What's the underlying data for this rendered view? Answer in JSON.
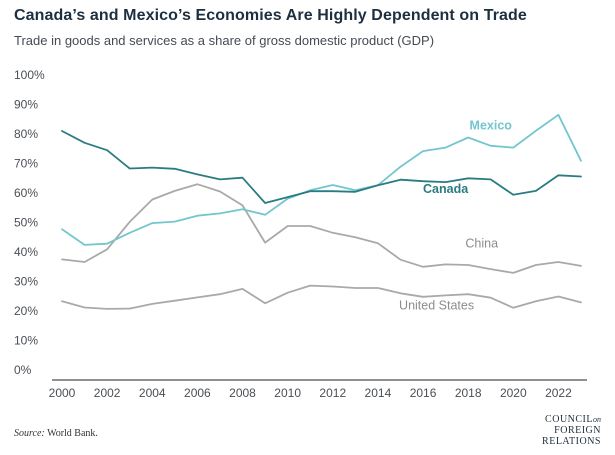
{
  "header": {
    "title": "Canada’s and Mexico’s Economies Are Highly Dependent on Trade",
    "subtitle": "Trade in goods and services as a share of gross domestic product (GDP)"
  },
  "footer": {
    "source_label": "Source:",
    "source_text": "World Bank.",
    "logo_line1": "COUNCIL",
    "logo_on": "on",
    "logo_line2": "FOREIGN",
    "logo_line3": "RELATIONS"
  },
  "colors": {
    "mexico": "#72c6cd",
    "canada": "#2a7c83",
    "china": "#a9a9a9",
    "united_states": "#a9a9a9",
    "axis": "#222222",
    "tick_text": "#4a4f55"
  },
  "chart_data": {
    "type": "line",
    "title": "Canada’s and Mexico’s Economies Are Highly Dependent on Trade",
    "subtitle": "Trade in goods and services as a share of gross domestic product (GDP)",
    "xlabel": "",
    "ylabel": "",
    "x": [
      2000,
      2001,
      2002,
      2003,
      2004,
      2005,
      2006,
      2007,
      2008,
      2009,
      2010,
      2011,
      2012,
      2013,
      2014,
      2015,
      2016,
      2017,
      2018,
      2019,
      2020,
      2021,
      2022,
      2023
    ],
    "xticks": [
      "2000",
      "2002",
      "2004",
      "2006",
      "2008",
      "2010",
      "2012",
      "2014",
      "2016",
      "2018",
      "2020",
      "2022"
    ],
    "ylim": [
      0,
      100
    ],
    "yticks": [
      "0%",
      "10%",
      "20%",
      "30%",
      "40%",
      "50%",
      "60%",
      "70%",
      "80%",
      "90%",
      "100%"
    ],
    "grid": false,
    "series": [
      {
        "name": "Mexico",
        "key": "mexico",
        "values": [
          47.7,
          42.4,
          42.8,
          46.5,
          49.8,
          50.3,
          52.3,
          53.1,
          54.5,
          52.6,
          58.1,
          60.9,
          62.7,
          60.9,
          62.6,
          68.9,
          74.2,
          75.4,
          78.8,
          76.0,
          75.4,
          81.1,
          86.5,
          70.9
        ]
      },
      {
        "name": "Canada",
        "key": "canada",
        "values": [
          81.0,
          77.0,
          74.5,
          68.3,
          68.6,
          68.2,
          66.3,
          64.6,
          65.2,
          56.6,
          58.6,
          60.6,
          60.6,
          60.4,
          62.6,
          64.5,
          64.0,
          63.7,
          65.0,
          64.6,
          59.4,
          60.7,
          66.0,
          65.6
        ]
      },
      {
        "name": "China",
        "key": "china",
        "values": [
          37.5,
          36.6,
          40.9,
          50.2,
          57.8,
          60.7,
          63.0,
          60.5,
          55.8,
          43.2,
          48.8,
          48.8,
          46.5,
          45.0,
          43.0,
          37.4,
          35.0,
          35.8,
          35.6,
          34.2,
          32.9,
          35.6,
          36.6,
          35.3
        ]
      },
      {
        "name": "United States",
        "key": "united_states",
        "values": [
          23.3,
          21.2,
          20.7,
          20.8,
          22.4,
          23.5,
          24.6,
          25.7,
          27.5,
          22.6,
          26.2,
          28.6,
          28.3,
          27.8,
          27.8,
          26.0,
          24.8,
          25.3,
          25.7,
          24.5,
          21.1,
          23.3,
          24.9,
          22.9
        ]
      }
    ],
    "annotations": [
      {
        "text": "Mexico",
        "series": "mexico"
      },
      {
        "text": "Canada",
        "series": "canada"
      },
      {
        "text": "China",
        "series": "china"
      },
      {
        "text": "United States",
        "series": "united_states"
      }
    ]
  }
}
